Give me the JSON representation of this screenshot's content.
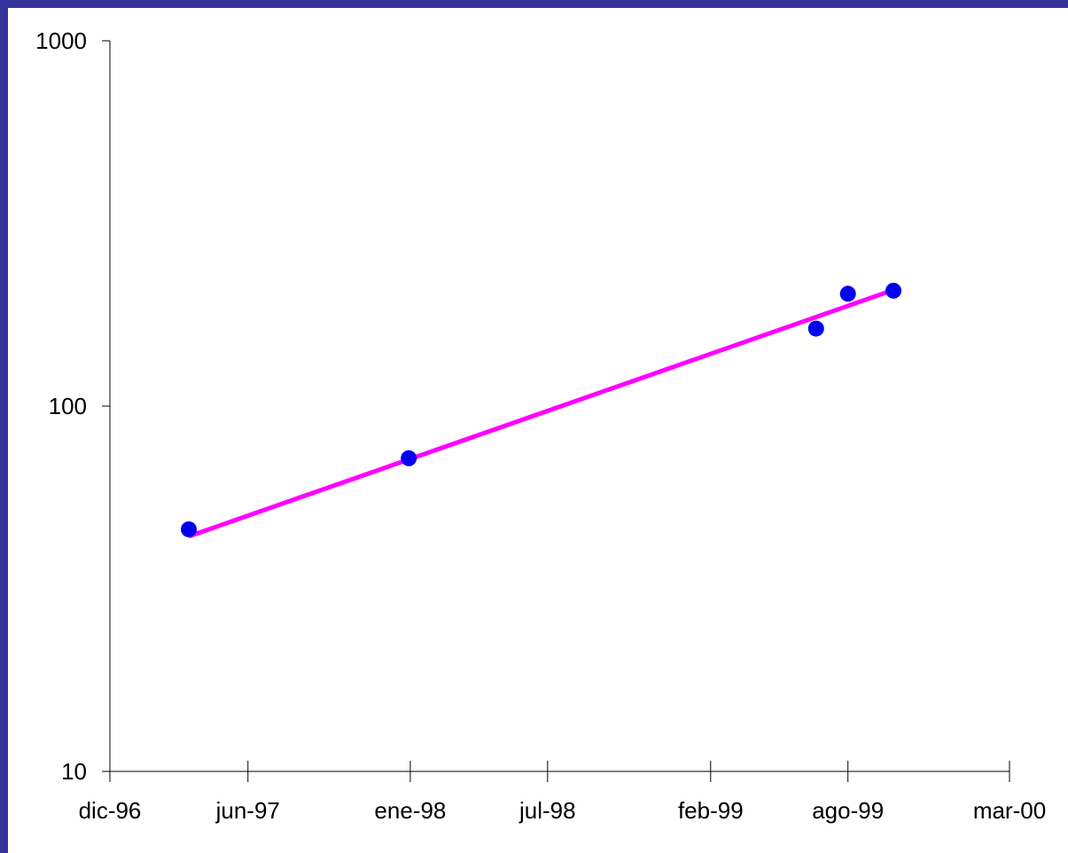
{
  "chart_data": {
    "type": "scatter",
    "title": "",
    "xlabel": "",
    "ylabel": "",
    "y_scale": "log",
    "ylim": [
      10,
      1000
    ],
    "y_ticks": [
      {
        "value": 10,
        "label": "10"
      },
      {
        "value": 100,
        "label": "100"
      },
      {
        "value": 1000,
        "label": "1000"
      }
    ],
    "xlim": [
      "1996-12-01",
      "2000-03-01"
    ],
    "x_ticks": [
      {
        "value": "1996-12-01",
        "label": "dic-96"
      },
      {
        "value": "1997-06-01",
        "label": "jun-97"
      },
      {
        "value": "1998-01-01",
        "label": "ene-98"
      },
      {
        "value": "1998-07-01",
        "label": "jul-98"
      },
      {
        "value": "1999-02-01",
        "label": "feb-99"
      },
      {
        "value": "1999-08-01",
        "label": "ago-99"
      },
      {
        "value": "2000-03-01",
        "label": "mar-00"
      }
    ],
    "grid": false,
    "series": [
      {
        "kind": "points",
        "color": "#0000ee",
        "points": [
          {
            "x": "1997-03-15",
            "y": 46
          },
          {
            "x": "1997-12-30",
            "y": 72
          },
          {
            "x": "1999-06-20",
            "y": 163
          },
          {
            "x": "1999-08-01",
            "y": 203
          },
          {
            "x": "1999-09-30",
            "y": 207
          }
        ]
      },
      {
        "kind": "trendline",
        "color": "#ff00ff",
        "points": [
          {
            "x": "1997-03-15",
            "y": 44
          },
          {
            "x": "1999-09-30",
            "y": 208
          }
        ]
      }
    ]
  }
}
